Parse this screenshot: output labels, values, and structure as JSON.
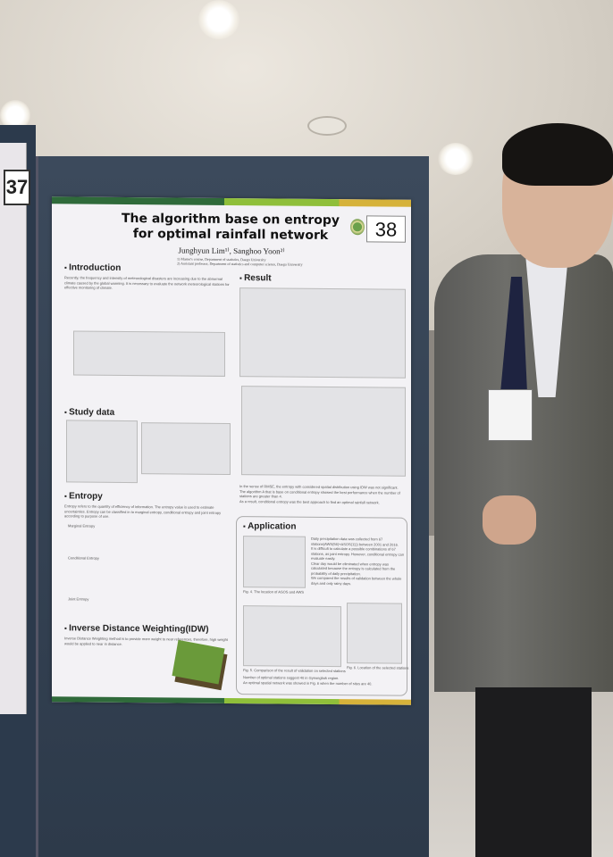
{
  "scene": {
    "description_free": true
  },
  "left_poster": {
    "number": "37"
  },
  "poster": {
    "number": "38",
    "title_line1": "The algorithm base on entropy",
    "title_line2": "for optimal rainfall network",
    "authors": "Junghyun Lim¹⁾, Sanghoo Yoon²⁾",
    "affiliation1": "1) Master's course, Department of statistics, Daegu University",
    "affiliation2": "2) Assistant professor, Department of statistics and computer science, Daegu University",
    "sections": {
      "introduction": "Introduction",
      "study_data": "Study data",
      "entropy": "Entropy",
      "idw": "Inverse Distance Weighting(IDW)",
      "result": "Result",
      "application": "Application"
    },
    "intro_text": "Recently, the frequency and intensity of meteorological disasters are increasing due to the abnormal climate caused by the global warming. It is necessary to evaluate the network meteorological stations for effective monitoring of climate.",
    "entropy_text": "Entropy refers to the quantity of efficiency of information. The entropy value is used to estimate uncertainties. Entropy can be classified in to marginal entropy, conditional entropy and joint entropy according to purpose of use.",
    "entropy_items": [
      "Marginal Entropy",
      "Conditional Entropy",
      "Joint Entropy"
    ],
    "idw_text": "Inverse Distance Weighting method is to provide more weight to near references, therefore, high weight would be applied to near in distance.",
    "result_bullets": [
      "In the sense of RMSE, the entropy with considered spatial distribution using IDW was not significant.",
      "The algorithm A that is base on conditional entropy showed the best performance when the number of stations are greater than 4.",
      "As a result, conditional entropy was the best approach to find an optimal rainfall network."
    ],
    "application_bullets": [
      "Daily precipitation data was collected from 67 stations(AWS(56)+ASOS(11)) between 2001 and 2016.",
      "It is difficult to calculate a possible combinations of 67 stations, as joint entropy. However, conditional entropy can evaluate easily.",
      "Clear day would be eliminated when entropy was calculated because the entropy is calculated from the probability of daily precipitation.",
      "We compared the results of validation between the whole days and only rainy days."
    ],
    "app_footer": [
      "Number of optimal stations suggest 40 in Gyeongbuk region.",
      "An optimal spatial network was showed in Fig. 6 when the number of sites are 40."
    ],
    "fig_captions": {
      "fig4": "Fig. 4. The location of ASOS and AWS",
      "fig5": "Fig. 5. Comparison of the result of validation on selected stations",
      "fig6": "Fig. 6. Location of the selected stations"
    }
  },
  "colors": {
    "board": "#2d3a4a",
    "poster_bar_dark": "#2f6a3a",
    "poster_bar_light": "#8fbf3a",
    "poster_bar_gold": "#d6b23a"
  }
}
